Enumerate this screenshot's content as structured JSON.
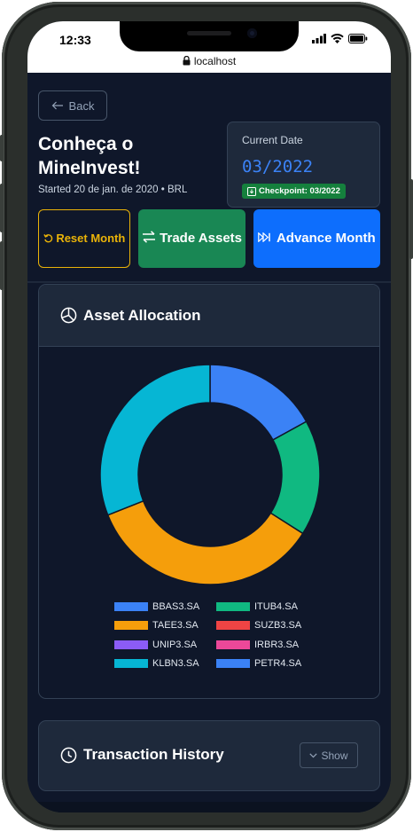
{
  "status_bar": {
    "time": "12:33",
    "url": "localhost"
  },
  "header": {
    "back_label": "Back",
    "title": "Conheça o MineInvest!",
    "subtitle": "Started 20 de jan. de 2020 • BRL"
  },
  "date_card": {
    "label": "Current Date",
    "value": "03/2022",
    "checkpoint": "Checkpoint: 03/2022"
  },
  "actions": {
    "reset": "Reset Month",
    "trade": "Trade Assets",
    "advance": "Advance Month"
  },
  "allocation": {
    "title": "Asset Allocation"
  },
  "chart_data": {
    "type": "pie",
    "variant": "doughnut",
    "labels": [
      "BBAS3.SA",
      "ITUB4.SA",
      "TAEE3.SA",
      "SUZB3.SA",
      "UNIP3.SA",
      "IRBR3.SA",
      "KLBN3.SA",
      "PETR4.SA"
    ],
    "values": [
      17,
      17,
      35,
      0,
      0,
      0,
      31,
      0
    ],
    "colors": [
      "#3b82f6",
      "#10b981",
      "#f59e0b",
      "#ef4444",
      "#8b5cf6",
      "#ec4899",
      "#06b6d4",
      "#3b82f6"
    ],
    "legend_position": "bottom"
  },
  "transactions": {
    "title": "Transaction History",
    "show_label": "Show"
  },
  "icons": {
    "back": "arrow-left-icon",
    "reset": "rotate-ccw-icon",
    "trade": "arrows-exchange-icon",
    "advance": "fast-forward-icon",
    "allocation": "pie-chart-icon",
    "history": "clock-icon",
    "show": "chevron-down-icon",
    "checkpoint": "save-icon"
  }
}
